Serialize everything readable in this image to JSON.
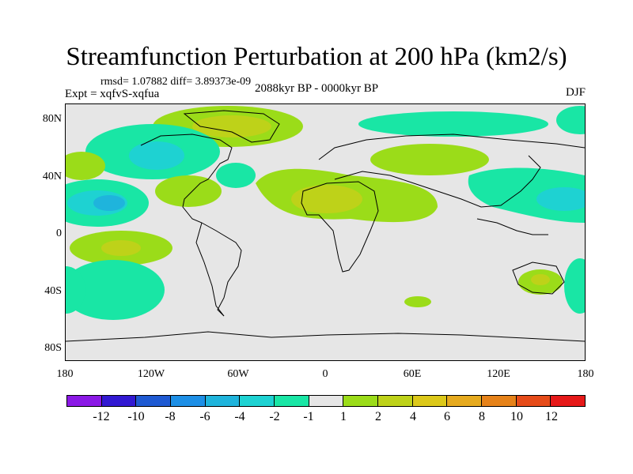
{
  "title": "Streamfunction Perturbation at 200 hPa (km2/s)",
  "stats": "rmsd= 1.07882 diff= 3.89373e-09",
  "experiment": "Expt = xqfvS-xqfua",
  "period": "2088kyr BP - 0000kyr BP",
  "season": "DJF",
  "map": {
    "projection": "cylindrical equidistant",
    "lon_range": [
      -180,
      180
    ],
    "lat_range": [
      -90,
      90
    ],
    "y_ticks": [
      "80N",
      "40N",
      "0",
      "40S",
      "80S"
    ],
    "x_ticks": [
      "180",
      "120W",
      "60W",
      "0",
      "60E",
      "120E",
      "180"
    ],
    "anomaly_regions": [
      {
        "name": "greenland-high",
        "sign": "positive",
        "level": "1 to 2"
      },
      {
        "name": "north-pacific-low",
        "sign": "negative",
        "level": "-4 to -2"
      },
      {
        "name": "africa-high",
        "sign": "positive",
        "level": "2 to 4"
      },
      {
        "name": "south-pacific-high",
        "sign": "positive",
        "level": "2 to 4"
      },
      {
        "name": "australia-high",
        "sign": "positive",
        "level": "2 to 4"
      },
      {
        "name": "western-pacific-low",
        "sign": "negative",
        "level": "-4 to -2"
      }
    ]
  },
  "colorbar": {
    "colors": [
      "#8b19e6",
      "#3219d2",
      "#1f5ad2",
      "#1d8fe6",
      "#1fb4dc",
      "#1ed2d2",
      "#19e6a5",
      "#e6e6e6",
      "#9bdc19",
      "#bed219",
      "#dcc819",
      "#e6aa1e",
      "#e68219",
      "#e64b19",
      "#e61919"
    ],
    "labels": [
      "-12",
      "-10",
      "-8",
      "-6",
      "-4",
      "-2",
      "-1",
      "1",
      "2",
      "4",
      "6",
      "8",
      "10",
      "12"
    ]
  }
}
